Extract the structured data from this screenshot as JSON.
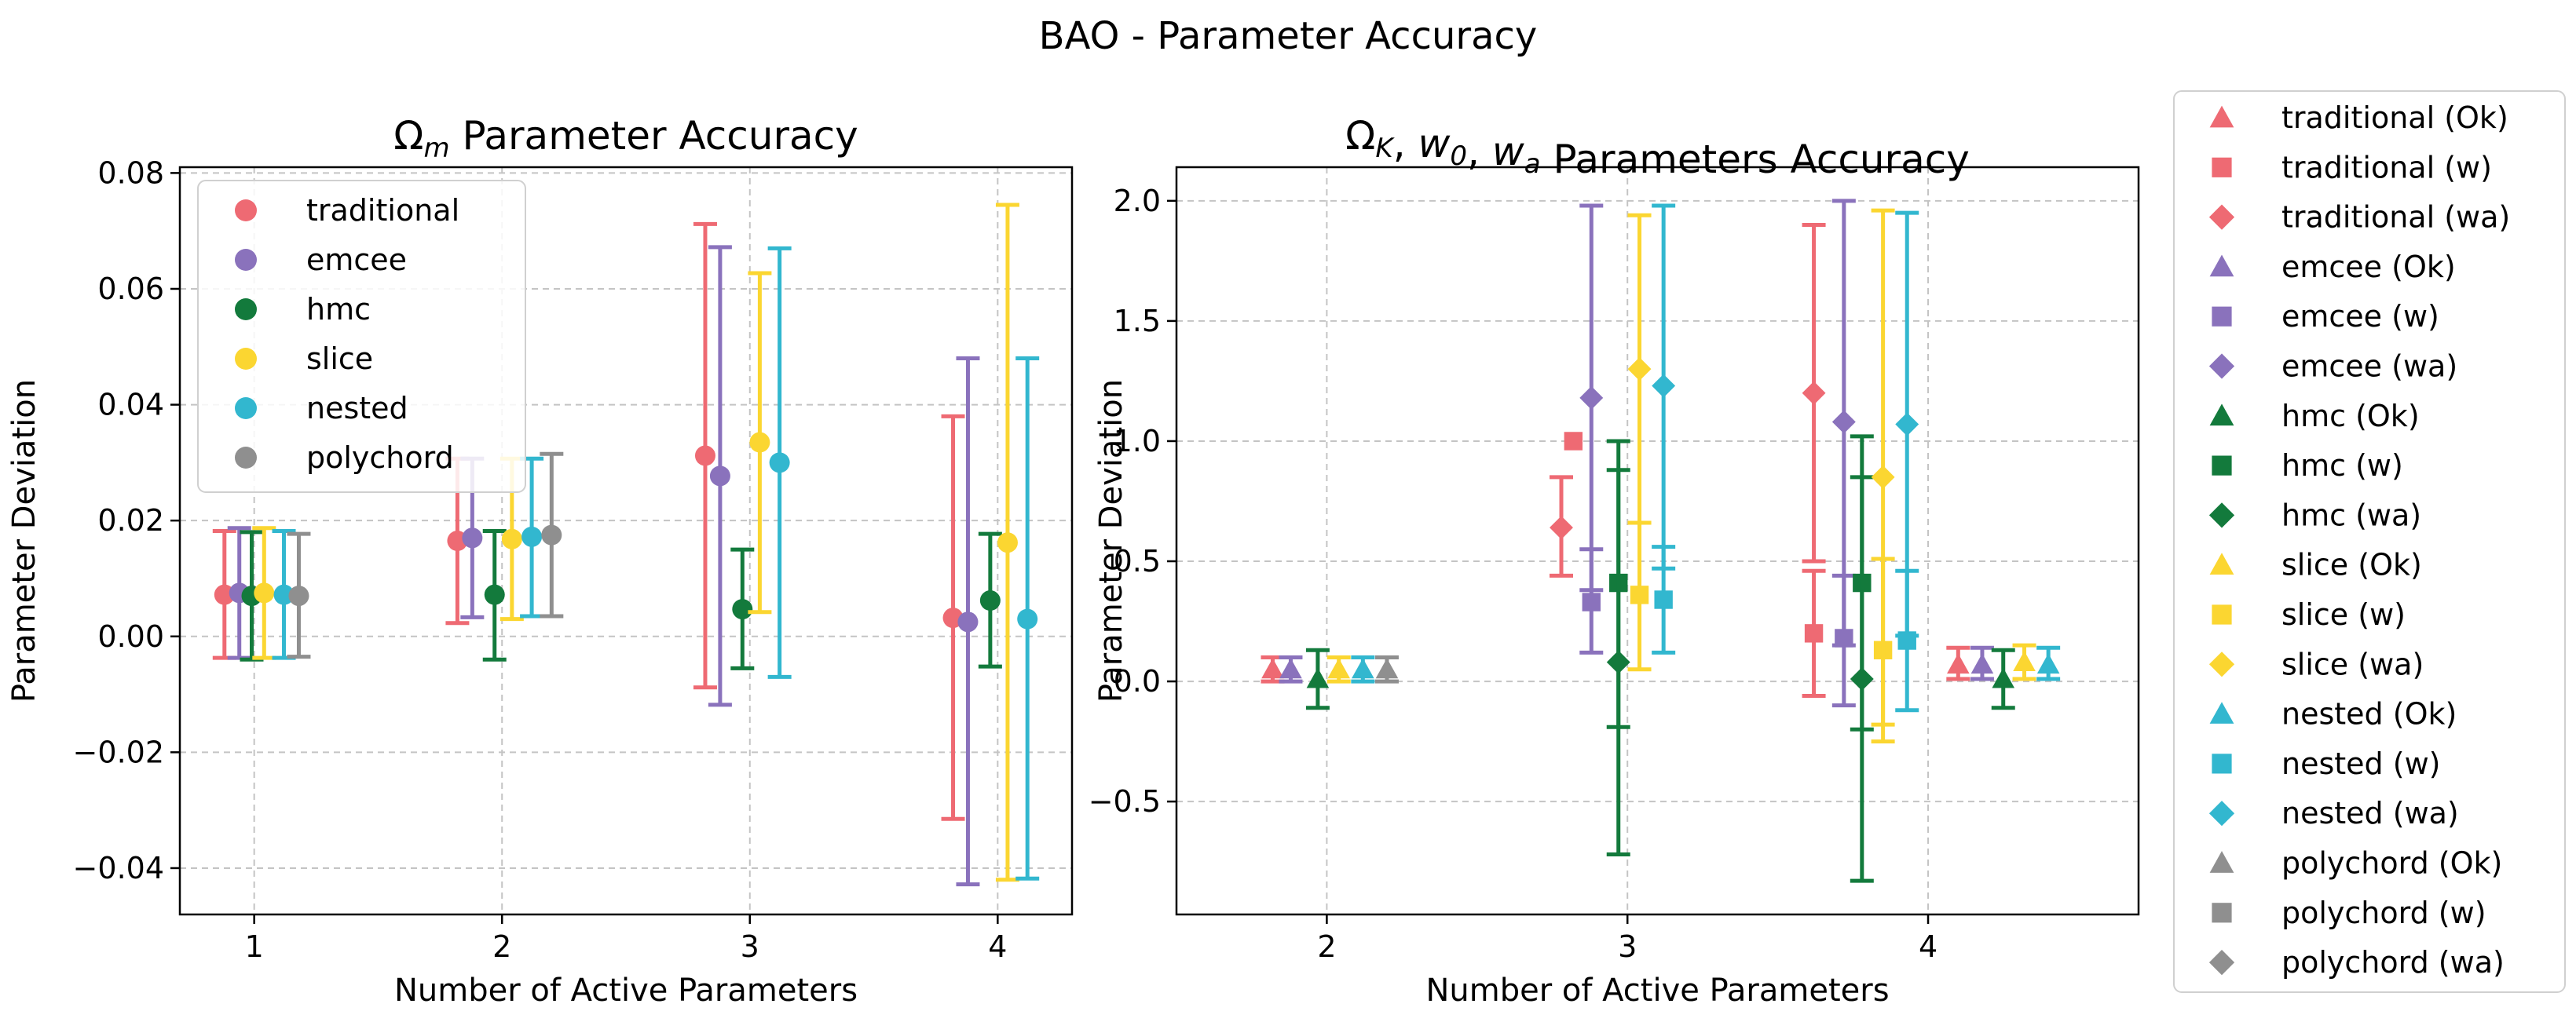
{
  "figure_title": "BAO - Parameter Accuracy",
  "chart_data": [
    {
      "type": "scatter",
      "subtype": "errorbar",
      "title": "Ω_m Parameter Accuracy",
      "title_symbol": "Ω",
      "title_subscript": "m",
      "title_rest": " Parameter Accuracy",
      "xlabel": "Number of Active Parameters",
      "ylabel": "Parameter Deviation",
      "xlim": [
        0.7,
        4.3
      ],
      "ylim": [
        -0.048,
        0.081
      ],
      "xticks": [
        1,
        2,
        3,
        4
      ],
      "xtick_labels": [
        "1",
        "2",
        "3",
        "4"
      ],
      "yticks": [
        -0.04,
        -0.02,
        0.0,
        0.02,
        0.04,
        0.06,
        0.08
      ],
      "ytick_labels": [
        "−0.04",
        "−0.02",
        "0.00",
        "0.02",
        "0.04",
        "0.06",
        "0.08"
      ],
      "grid": true,
      "legend_position": "top-left",
      "series": [
        {
          "name": "traditional",
          "color": "#ee6a73",
          "marker": "circle",
          "points": [
            {
              "x": 0.88,
              "y": 0.0072,
              "lo": -0.0037,
              "hi": 0.0182
            },
            {
              "x": 1.82,
              "y": 0.0165,
              "lo": 0.0023,
              "hi": 0.0307
            },
            {
              "x": 2.82,
              "y": 0.0312,
              "lo": -0.0088,
              "hi": 0.0712
            },
            {
              "x": 3.82,
              "y": 0.0032,
              "lo": -0.0315,
              "hi": 0.038
            }
          ]
        },
        {
          "name": "emcee",
          "color": "#8a72bc",
          "marker": "circle",
          "points": [
            {
              "x": 0.94,
              "y": 0.0075,
              "lo": -0.0037,
              "hi": 0.0187
            },
            {
              "x": 1.88,
              "y": 0.017,
              "lo": 0.0033,
              "hi": 0.0307
            },
            {
              "x": 2.88,
              "y": 0.0277,
              "lo": -0.0118,
              "hi": 0.0672
            },
            {
              "x": 3.88,
              "y": 0.0025,
              "lo": -0.0428,
              "hi": 0.048
            }
          ]
        },
        {
          "name": "hmc",
          "color": "#137a3c",
          "marker": "circle",
          "points": [
            {
              "x": 0.99,
              "y": 0.007,
              "lo": -0.004,
              "hi": 0.018
            },
            {
              "x": 1.97,
              "y": 0.0072,
              "lo": -0.004,
              "hi": 0.0182
            },
            {
              "x": 2.97,
              "y": 0.0047,
              "lo": -0.0055,
              "hi": 0.015
            },
            {
              "x": 3.97,
              "y": 0.0062,
              "lo": -0.0052,
              "hi": 0.0177
            }
          ]
        },
        {
          "name": "slice",
          "color": "#fbd631",
          "marker": "circle",
          "points": [
            {
              "x": 1.04,
              "y": 0.0075,
              "lo": -0.0037,
              "hi": 0.0187
            },
            {
              "x": 2.04,
              "y": 0.0168,
              "lo": 0.003,
              "hi": 0.0307
            },
            {
              "x": 3.04,
              "y": 0.0335,
              "lo": 0.0042,
              "hi": 0.0627
            },
            {
              "x": 4.04,
              "y": 0.0162,
              "lo": -0.042,
              "hi": 0.0745
            }
          ]
        },
        {
          "name": "nested",
          "color": "#32b7cf",
          "marker": "circle",
          "points": [
            {
              "x": 1.12,
              "y": 0.0072,
              "lo": -0.0037,
              "hi": 0.0182
            },
            {
              "x": 2.12,
              "y": 0.0172,
              "lo": 0.0035,
              "hi": 0.0307
            },
            {
              "x": 3.12,
              "y": 0.03,
              "lo": -0.007,
              "hi": 0.067
            },
            {
              "x": 4.12,
              "y": 0.003,
              "lo": -0.0418,
              "hi": 0.048
            }
          ]
        },
        {
          "name": "polychord",
          "color": "#8f8f8f",
          "marker": "circle",
          "points": [
            {
              "x": 1.18,
              "y": 0.007,
              "lo": -0.0035,
              "hi": 0.0177
            },
            {
              "x": 2.2,
              "y": 0.0175,
              "lo": 0.0035,
              "hi": 0.0315
            }
          ]
        }
      ]
    },
    {
      "type": "scatter",
      "subtype": "errorbar",
      "title": "Ω_K, w_0, w_a Parameters Accuracy",
      "title_parts": [
        {
          "t": "Ω",
          "i": false,
          "sub": "K"
        },
        {
          "t": ", ",
          "i": false
        },
        {
          "t": "w",
          "i": true,
          "sub": "0"
        },
        {
          "t": ", ",
          "i": false
        },
        {
          "t": "w",
          "i": true,
          "sub": "a"
        },
        {
          "t": " Parameters Accuracy",
          "i": false
        }
      ],
      "xlabel": "Number of Active Parameters",
      "ylabel": "Parameter Deviation",
      "xlim": [
        1.5,
        4.7
      ],
      "ylim": [
        -0.97,
        2.14
      ],
      "xticks": [
        2,
        3,
        4
      ],
      "xtick_labels": [
        "2",
        "3",
        "4"
      ],
      "yticks": [
        -0.5,
        0.0,
        0.5,
        1.0,
        1.5,
        2.0
      ],
      "ytick_labels": [
        "−0.5",
        "0.0",
        "0.5",
        "1.0",
        "1.5",
        "2.0"
      ],
      "grid": true,
      "legend_position": "outside-right",
      "series": [
        {
          "name": "traditional (Ok)",
          "color": "#ee6a73",
          "marker": "triangle",
          "points": [
            {
              "x": 1.82,
              "y": 0.05,
              "lo": 0.0,
              "hi": 0.1
            },
            {
              "x": 4.1,
              "y": 0.07,
              "lo": 0.01,
              "hi": 0.14
            }
          ]
        },
        {
          "name": "traditional (w)",
          "color": "#ee6a73",
          "marker": "square",
          "points": [
            {
              "x": 2.82,
              "y": 1.0
            },
            {
              "x": 3.62,
              "y": 0.2,
              "lo": -0.06,
              "hi": 0.46
            }
          ]
        },
        {
          "name": "traditional (wa)",
          "color": "#ee6a73",
          "marker": "diamond",
          "points": [
            {
              "x": 2.78,
              "y": 0.64,
              "lo": 0.44,
              "hi": 0.85
            },
            {
              "x": 3.62,
              "y": 1.2,
              "lo": 0.5,
              "hi": 1.9
            }
          ]
        },
        {
          "name": "emcee (Ok)",
          "color": "#8a72bc",
          "marker": "triangle",
          "points": [
            {
              "x": 1.88,
              "y": 0.05,
              "lo": 0.0,
              "hi": 0.1
            },
            {
              "x": 4.18,
              "y": 0.07,
              "lo": 0.01,
              "hi": 0.14
            }
          ]
        },
        {
          "name": "emcee (w)",
          "color": "#8a72bc",
          "marker": "square",
          "points": [
            {
              "x": 2.88,
              "y": 0.33,
              "lo": 0.12,
              "hi": 0.55
            },
            {
              "x": 3.72,
              "y": 0.18,
              "lo": -0.1,
              "hi": 0.44
            }
          ]
        },
        {
          "name": "emcee (wa)",
          "color": "#8a72bc",
          "marker": "diamond",
          "points": [
            {
              "x": 2.88,
              "y": 1.18,
              "lo": 0.38,
              "hi": 1.98
            },
            {
              "x": 3.72,
              "y": 1.08,
              "lo": 0.15,
              "hi": 2.0
            }
          ]
        },
        {
          "name": "hmc (Ok)",
          "color": "#137a3c",
          "marker": "triangle",
          "points": [
            {
              "x": 1.97,
              "y": 0.01,
              "lo": -0.11,
              "hi": 0.13
            },
            {
              "x": 4.25,
              "y": 0.01,
              "lo": -0.11,
              "hi": 0.13
            }
          ]
        },
        {
          "name": "hmc (w)",
          "color": "#137a3c",
          "marker": "square",
          "points": [
            {
              "x": 2.97,
              "y": 0.41,
              "lo": -0.19,
              "hi": 1.0
            },
            {
              "x": 3.78,
              "y": 0.41,
              "lo": -0.2,
              "hi": 1.02
            }
          ]
        },
        {
          "name": "hmc (wa)",
          "color": "#137a3c",
          "marker": "diamond",
          "points": [
            {
              "x": 2.97,
              "y": 0.08,
              "lo": -0.72,
              "hi": 0.88
            },
            {
              "x": 3.78,
              "y": 0.01,
              "lo": -0.83,
              "hi": 0.85
            }
          ]
        },
        {
          "name": "slice (Ok)",
          "color": "#fbd631",
          "marker": "triangle",
          "points": [
            {
              "x": 2.04,
              "y": 0.05,
              "lo": 0.0,
              "hi": 0.1
            },
            {
              "x": 4.32,
              "y": 0.08,
              "lo": 0.01,
              "hi": 0.15
            }
          ]
        },
        {
          "name": "slice (w)",
          "color": "#fbd631",
          "marker": "square",
          "points": [
            {
              "x": 3.04,
              "y": 0.36,
              "lo": 0.05,
              "hi": 0.66
            },
            {
              "x": 3.85,
              "y": 0.13,
              "lo": -0.25,
              "hi": 0.51
            }
          ]
        },
        {
          "name": "slice (wa)",
          "color": "#fbd631",
          "marker": "diamond",
          "points": [
            {
              "x": 3.04,
              "y": 1.3,
              "lo": 0.66,
              "hi": 1.94
            },
            {
              "x": 3.85,
              "y": 0.85,
              "lo": -0.18,
              "hi": 1.96
            }
          ]
        },
        {
          "name": "nested (Ok)",
          "color": "#32b7cf",
          "marker": "triangle",
          "points": [
            {
              "x": 2.12,
              "y": 0.05,
              "lo": 0.0,
              "hi": 0.1
            },
            {
              "x": 4.4,
              "y": 0.07,
              "lo": 0.01,
              "hi": 0.14
            }
          ]
        },
        {
          "name": "nested (w)",
          "color": "#32b7cf",
          "marker": "square",
          "points": [
            {
              "x": 3.12,
              "y": 0.34,
              "lo": 0.12,
              "hi": 0.56
            },
            {
              "x": 3.93,
              "y": 0.17,
              "lo": -0.12,
              "hi": 0.46
            }
          ]
        },
        {
          "name": "nested (wa)",
          "color": "#32b7cf",
          "marker": "diamond",
          "points": [
            {
              "x": 3.12,
              "y": 1.23,
              "lo": 0.47,
              "hi": 1.98
            },
            {
              "x": 3.93,
              "y": 1.07,
              "lo": 0.19,
              "hi": 1.95
            }
          ]
        },
        {
          "name": "polychord (Ok)",
          "color": "#8f8f8f",
          "marker": "triangle",
          "points": [
            {
              "x": 2.2,
              "y": 0.05,
              "lo": 0.0,
              "hi": 0.1
            }
          ]
        },
        {
          "name": "polychord (w)",
          "color": "#8f8f8f",
          "marker": "square",
          "points": []
        },
        {
          "name": "polychord (wa)",
          "color": "#8f8f8f",
          "marker": "diamond",
          "points": []
        }
      ]
    }
  ]
}
